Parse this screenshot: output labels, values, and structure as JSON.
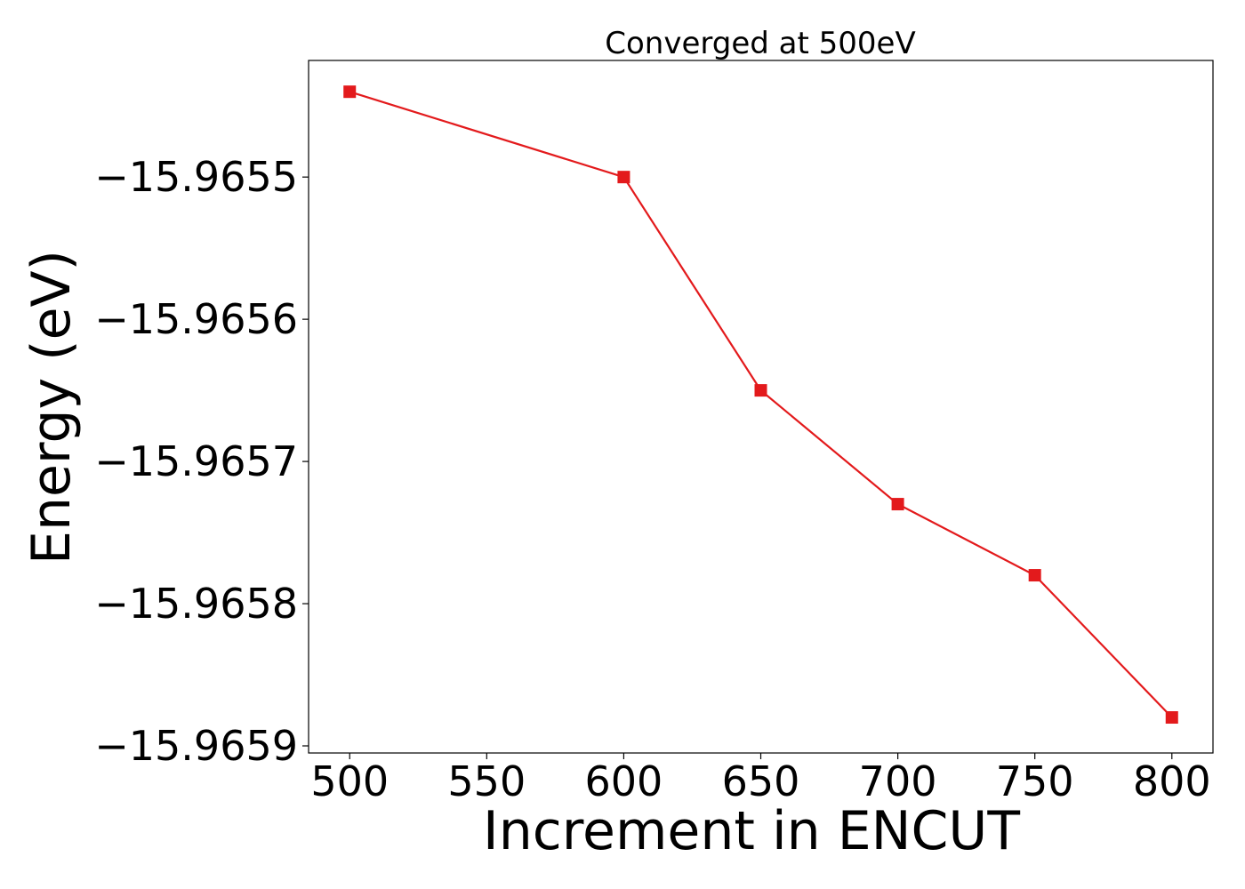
{
  "chart_data": {
    "type": "line",
    "title": "Converged at 500eV",
    "xlabel": "Increment in ENCUT",
    "ylabel": "Energy (eV)",
    "x": [
      500,
      600,
      650,
      700,
      750,
      800
    ],
    "series": [
      {
        "values": [
          -15.96544,
          -15.9655,
          -15.96565,
          -15.96573,
          -15.96578,
          -15.96588
        ],
        "color": "#e31a1c",
        "marker": "square"
      }
    ],
    "xlim": [
      485,
      815
    ],
    "ylim": [
      -15.965905,
      -15.965418
    ],
    "xticks": [
      500,
      550,
      600,
      650,
      700,
      750,
      800
    ],
    "xtick_labels": [
      "500",
      "550",
      "600",
      "650",
      "700",
      "750",
      "800"
    ],
    "yticks": [
      -15.9655,
      -15.9656,
      -15.9657,
      -15.9658,
      -15.9659
    ],
    "ytick_labels": [
      "−15.9655",
      "−15.9656",
      "−15.9657",
      "−15.9658",
      "−15.9659"
    ],
    "grid": false,
    "legend": "none"
  }
}
